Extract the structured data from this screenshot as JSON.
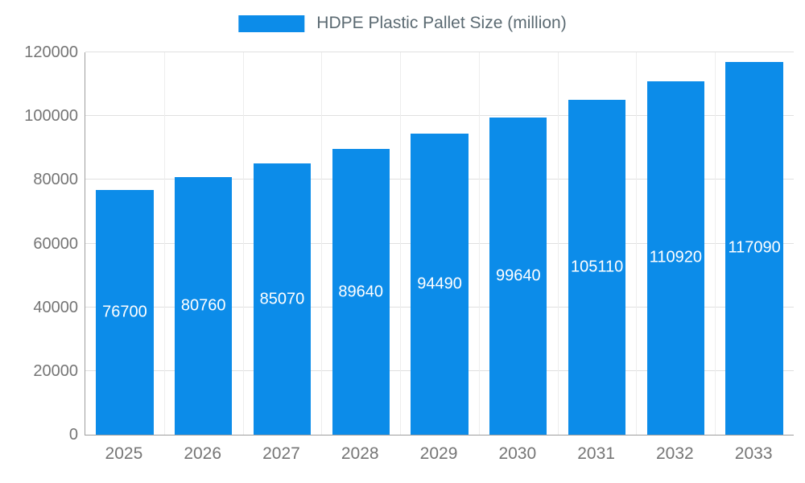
{
  "legend": {
    "label": "HDPE Plastic Pallet Size (million)"
  },
  "colors": {
    "bar": "#0c8ce9",
    "axis_line": "#9e9e9e",
    "gridline": "#e0e0e0",
    "vertical_gridline": "#ededed",
    "tick_text": "#757575",
    "value_label_text": "#ffffff",
    "legend_text": "#5b6a72"
  },
  "chart_data": {
    "type": "bar",
    "title": "HDPE Plastic Pallet Size (million)",
    "categories": [
      "2025",
      "2026",
      "2027",
      "2028",
      "2029",
      "2030",
      "2031",
      "2032",
      "2033"
    ],
    "values": [
      76700,
      80760,
      85070,
      89640,
      94490,
      99640,
      105110,
      110920,
      117090
    ],
    "xlabel": "",
    "ylabel": "",
    "ylim": [
      0,
      120000
    ],
    "yticks": [
      0,
      20000,
      40000,
      60000,
      80000,
      100000,
      120000
    ],
    "grid": true,
    "legend_position": "top-center",
    "value_labels": "inside-center"
  }
}
